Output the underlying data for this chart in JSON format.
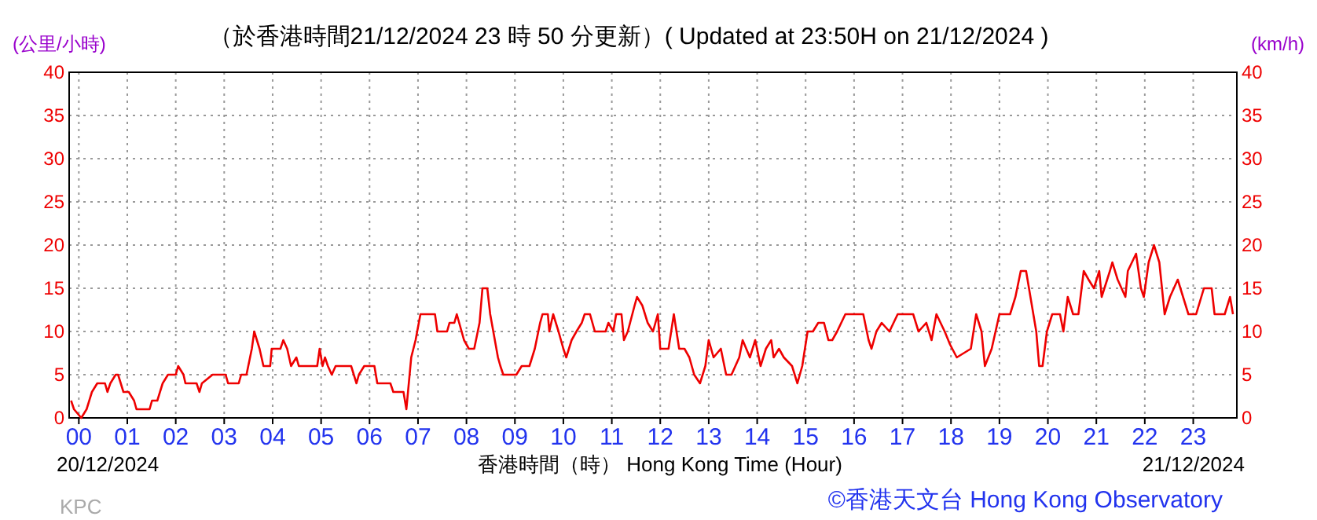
{
  "chart_data": {
    "type": "line",
    "title": "（於香港時間21/12/2024 23 時 50 分更新）( Updated at 23:50H on 21/12/2024 )",
    "xlabel": "香港時間（時） Hong Kong Time (Hour)",
    "ylabel": "(公里/小時)",
    "y2label": "(km/h)",
    "annotations": [
      "20/12/2024",
      "21/12/2024",
      "KPC",
      "©香港天文台 Hong Kong Observatory"
    ],
    "xlim": [
      -0.2,
      23.9
    ],
    "xticks": [
      {
        "value": 0,
        "label": "00"
      },
      {
        "value": 1,
        "label": "01"
      },
      {
        "value": 2,
        "label": "02"
      },
      {
        "value": 3,
        "label": "03"
      },
      {
        "value": 4,
        "label": "04"
      },
      {
        "value": 5,
        "label": "05"
      },
      {
        "value": 6,
        "label": "06"
      },
      {
        "value": 7,
        "label": "07"
      },
      {
        "value": 8,
        "label": "08"
      },
      {
        "value": 9,
        "label": "09"
      },
      {
        "value": 10,
        "label": "10"
      },
      {
        "value": 11,
        "label": "11"
      },
      {
        "value": 12,
        "label": "12"
      },
      {
        "value": 13,
        "label": "13"
      },
      {
        "value": 14,
        "label": "14"
      },
      {
        "value": 15,
        "label": "15"
      },
      {
        "value": 16,
        "label": "16"
      },
      {
        "value": 17,
        "label": "17"
      },
      {
        "value": 18,
        "label": "18"
      },
      {
        "value": 19,
        "label": "19"
      },
      {
        "value": 20,
        "label": "20"
      },
      {
        "value": 21,
        "label": "21"
      },
      {
        "value": 22,
        "label": "22"
      },
      {
        "value": 23,
        "label": "23"
      }
    ],
    "ylim": [
      0,
      40
    ],
    "yticks": [
      0,
      5,
      10,
      15,
      20,
      25,
      30,
      35,
      40
    ],
    "y2lim": [
      0,
      40
    ],
    "y2ticks": [
      0,
      5,
      10,
      15,
      20,
      25,
      30,
      35,
      40
    ],
    "grid": true,
    "series": [
      {
        "color": "#ee0000",
        "line_style": "solid",
        "x": [
          -0.16,
          -0.1,
          0.05,
          0.16,
          0.27,
          0.38,
          0.54,
          0.59,
          0.65,
          0.76,
          0.81,
          0.92,
          1.03,
          1.14,
          1.19,
          1.46,
          1.51,
          1.62,
          1.73,
          1.84,
          2.0,
          2.05,
          2.16,
          2.2,
          2.43,
          2.49,
          2.54,
          2.76,
          3.03,
          3.08,
          3.3,
          3.35,
          3.46,
          3.57,
          3.62,
          3.73,
          3.81,
          3.95,
          3.98,
          4.16,
          4.22,
          4.3,
          4.38,
          4.49,
          4.54,
          4.92,
          4.97,
          5.03,
          5.08,
          5.14,
          5.22,
          5.3,
          5.62,
          5.73,
          5.78,
          5.89,
          6.1,
          6.16,
          6.43,
          6.49,
          6.7,
          6.76,
          6.86,
          6.95,
          7.05,
          7.35,
          7.4,
          7.6,
          7.65,
          7.75,
          7.8,
          7.85,
          7.95,
          8.05,
          8.16,
          8.27,
          8.33,
          8.43,
          8.49,
          8.65,
          8.7,
          8.76,
          8.97,
          9.03,
          9.14,
          9.3,
          9.41,
          9.52,
          9.57,
          9.68,
          9.71,
          9.79,
          9.9,
          10.0,
          10.06,
          10.17,
          10.27,
          10.38,
          10.44,
          10.55,
          10.65,
          10.87,
          10.93,
          11.03,
          11.09,
          11.2,
          11.25,
          11.33,
          11.47,
          11.52,
          11.63,
          11.74,
          11.85,
          11.95,
          12.0,
          12.17,
          12.28,
          12.39,
          12.5,
          12.6,
          12.7,
          12.82,
          12.93,
          13.0,
          13.1,
          13.25,
          13.36,
          13.47,
          13.63,
          13.7,
          13.85,
          13.96,
          14.07,
          14.18,
          14.29,
          14.34,
          14.45,
          14.55,
          14.72,
          14.83,
          14.93,
          15.04,
          15.15,
          15.26,
          15.38,
          15.47,
          15.55,
          15.65,
          15.82,
          16.19,
          16.3,
          16.36,
          16.46,
          16.57,
          16.73,
          16.9,
          17.22,
          17.33,
          17.49,
          17.6,
          17.7,
          17.87,
          17.98,
          18.12,
          18.41,
          18.52,
          18.63,
          18.7,
          18.84,
          19.0,
          19.22,
          19.33,
          19.44,
          19.55,
          19.76,
          19.82,
          19.89,
          19.98,
          20.09,
          20.25,
          20.32,
          20.41,
          20.52,
          20.63,
          20.74,
          20.84,
          20.95,
          21.06,
          21.11,
          21.28,
          21.33,
          21.44,
          21.6,
          21.65,
          21.82,
          21.92,
          21.98,
          22.08,
          22.19,
          22.3,
          22.41,
          22.52,
          22.68,
          22.79,
          22.9,
          23.06,
          23.22,
          23.38,
          23.44,
          23.65,
          23.76,
          23.82
        ],
        "values": [
          2,
          1,
          0,
          1,
          3,
          4,
          4,
          3,
          4,
          5,
          5,
          3,
          3,
          2,
          1,
          1,
          2,
          2,
          4,
          5,
          5,
          6,
          5,
          4,
          4,
          3,
          4,
          5,
          5,
          4,
          4,
          5,
          5,
          8,
          10,
          8,
          6,
          6,
          8,
          8,
          9,
          8,
          6,
          7,
          6,
          6,
          8,
          6,
          7,
          6,
          5,
          6,
          6,
          4,
          5,
          6,
          6,
          4,
          4,
          3,
          3,
          1,
          7,
          9,
          12,
          12,
          10,
          10,
          11,
          11,
          12,
          11,
          9,
          8,
          8,
          11,
          15,
          15,
          12,
          7,
          6,
          5,
          5,
          5,
          6,
          6,
          8,
          11,
          12,
          12,
          10,
          12,
          10,
          8,
          7,
          9,
          10,
          11,
          12,
          12,
          10,
          10,
          11,
          10,
          12,
          12,
          9,
          10,
          13,
          14,
          13,
          11,
          10,
          12,
          8,
          8,
          12,
          8,
          8,
          7,
          5,
          4,
          6,
          9,
          7,
          8,
          5,
          5,
          7,
          9,
          7,
          9,
          6,
          8,
          9,
          7,
          8,
          7,
          6,
          4,
          6,
          10,
          10,
          11,
          11,
          9,
          9,
          10,
          12,
          12,
          9,
          8,
          10,
          11,
          10,
          12,
          12,
          10,
          11,
          9,
          12,
          10,
          8.5,
          7,
          8,
          12,
          10,
          6,
          8,
          12,
          12,
          14,
          17,
          17,
          10,
          6,
          6,
          10,
          12,
          12,
          10,
          14,
          12,
          12,
          17,
          16,
          15,
          17,
          14,
          17,
          18,
          16,
          14,
          17,
          19,
          15,
          14,
          18,
          20,
          18,
          12,
          14,
          16,
          14,
          12,
          12,
          15,
          15,
          12,
          12,
          14,
          12
        ]
      }
    ]
  }
}
